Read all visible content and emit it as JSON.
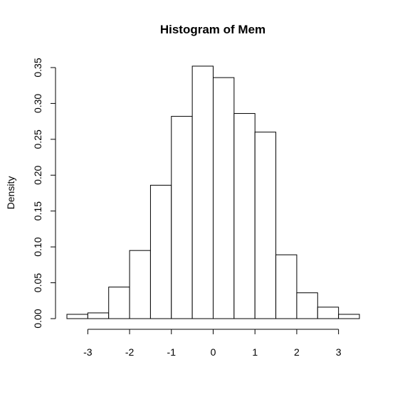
{
  "chart_data": {
    "type": "bar",
    "title": "Histogram of Mem",
    "xlabel": "",
    "ylabel": "Density",
    "bin_edges": [
      -3.5,
      -3.0,
      -2.5,
      -2.0,
      -1.5,
      -1.0,
      -0.5,
      0.0,
      0.5,
      1.0,
      1.5,
      2.0,
      2.5,
      3.0,
      3.5
    ],
    "values": [
      0.006,
      0.008,
      0.044,
      0.095,
      0.186,
      0.282,
      0.352,
      0.336,
      0.286,
      0.26,
      0.089,
      0.036,
      0.016,
      0.006
    ],
    "xlim": [
      -3.5,
      3.5
    ],
    "ylim": [
      0,
      0.35
    ],
    "x_ticks": [
      -3,
      -2,
      -1,
      0,
      1,
      2,
      3
    ],
    "x_tick_labels": [
      "-3",
      "-2",
      "-1",
      "0",
      "1",
      "2",
      "3"
    ],
    "y_ticks": [
      0.0,
      0.05,
      0.1,
      0.15,
      0.2,
      0.25,
      0.3,
      0.35
    ],
    "y_tick_labels": [
      "0.00",
      "0.05",
      "0.10",
      "0.15",
      "0.20",
      "0.25",
      "0.30",
      "0.35"
    ],
    "grid": false,
    "bar_fill": "#ffffff",
    "bar_stroke": "#000000"
  }
}
